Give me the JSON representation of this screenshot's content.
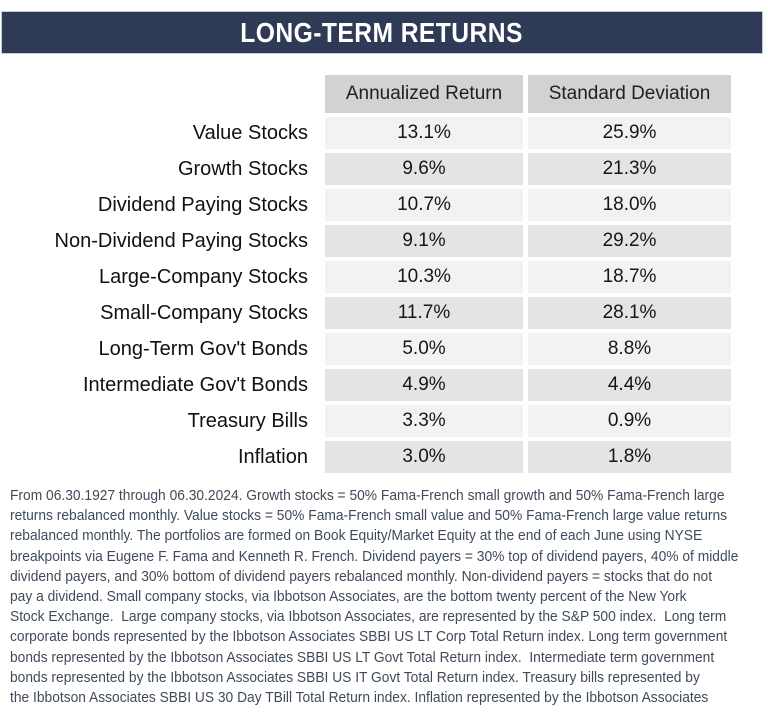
{
  "title_bar": {
    "title": "LONG-TERM RETURNS"
  },
  "table": {
    "column_headers": [
      "Annualized Return",
      "Standard Deviation"
    ],
    "rows": [
      {
        "label": "Value Stocks",
        "cells": [
          "13.1%",
          "25.9%"
        ]
      },
      {
        "label": "Growth Stocks",
        "cells": [
          "9.6%",
          "21.3%"
        ]
      },
      {
        "label": "Dividend Paying Stocks",
        "cells": [
          "10.7%",
          "18.0%"
        ]
      },
      {
        "label": "Non-Dividend Paying Stocks",
        "cells": [
          "9.1%",
          "29.2%"
        ]
      },
      {
        "label": "Large-Company Stocks",
        "cells": [
          "10.3%",
          "18.7%"
        ]
      },
      {
        "label": "Small-Company Stocks",
        "cells": [
          "11.7%",
          "28.1%"
        ]
      },
      {
        "label": "Long-Term Gov't Bonds",
        "cells": [
          "5.0%",
          "8.8%"
        ]
      },
      {
        "label": "Intermediate Gov't Bonds",
        "cells": [
          "4.9%",
          "4.4%"
        ]
      },
      {
        "label": "Treasury Bills",
        "cells": [
          "3.3%",
          "0.9%"
        ]
      },
      {
        "label": "Inflation",
        "cells": [
          "3.0%",
          "1.8%"
        ]
      }
    ]
  },
  "chart_data": {
    "type": "table",
    "title": "LONG-TERM RETURNS",
    "categories": [
      "Value Stocks",
      "Growth Stocks",
      "Dividend Paying Stocks",
      "Non-Dividend Paying Stocks",
      "Large-Company Stocks",
      "Small-Company Stocks",
      "Long-Term Gov't Bonds",
      "Intermediate Gov't Bonds",
      "Treasury Bills",
      "Inflation"
    ],
    "series": [
      {
        "name": "Annualized Return",
        "values": [
          13.1,
          9.6,
          10.7,
          9.1,
          10.3,
          11.7,
          5.0,
          4.9,
          3.3,
          3.0
        ]
      },
      {
        "name": "Standard Deviation",
        "values": [
          25.9,
          21.3,
          18.0,
          29.2,
          18.7,
          28.1,
          8.8,
          4.4,
          0.9,
          1.8
        ]
      }
    ],
    "unit": "%"
  },
  "footnote": {
    "lines": [
      "From 06.30.1927 through 06.30.2024. Growth stocks = 50% Fama-French small growth and 50% Fama-French large",
      "returns rebalanced monthly. Value stocks = 50% Fama-French small value and 50% Fama-French large value returns",
      "rebalanced monthly. The portfolios are formed on Book Equity/Market Equity at the end of each June using NYSE",
      "breakpoints via Eugene F. Fama and Kenneth R. French. Dividend payers = 30% top of dividend payers, 40% of middle",
      "dividend payers, and 30% bottom of dividend payers rebalanced monthly. Non-dividend payers = stocks that do not",
      "pay a dividend. Small company stocks, via Ibbotson Associates, are the bottom twenty percent of the New York",
      "Stock Exchange.  Large company stocks, via Ibbotson Associates, are represented by the S&P 500 index.  Long term",
      "corporate bonds represented by the Ibbotson Associates SBBI US LT Corp Total Return index. Long term government",
      "bonds represented by the Ibbotson Associates SBBI US LT Govt Total Return index.  Intermediate term government",
      "bonds represented by the Ibbotson Associates SBBI US IT Govt Total Return index. Treasury bills represented by",
      "the Ibbotson Associates SBBI US 30 Day TBill Total Return index. Inflation represented by the Ibbotson Associates"
    ]
  },
  "colors": {
    "title_bar_bg": "#2e3a56",
    "title_text": "#ffffff",
    "header_bg": "#d2d2d2",
    "row_light": "#f2f2f2",
    "row_dark": "#e4e4e4",
    "footnote_text": "#3f4b5a"
  }
}
